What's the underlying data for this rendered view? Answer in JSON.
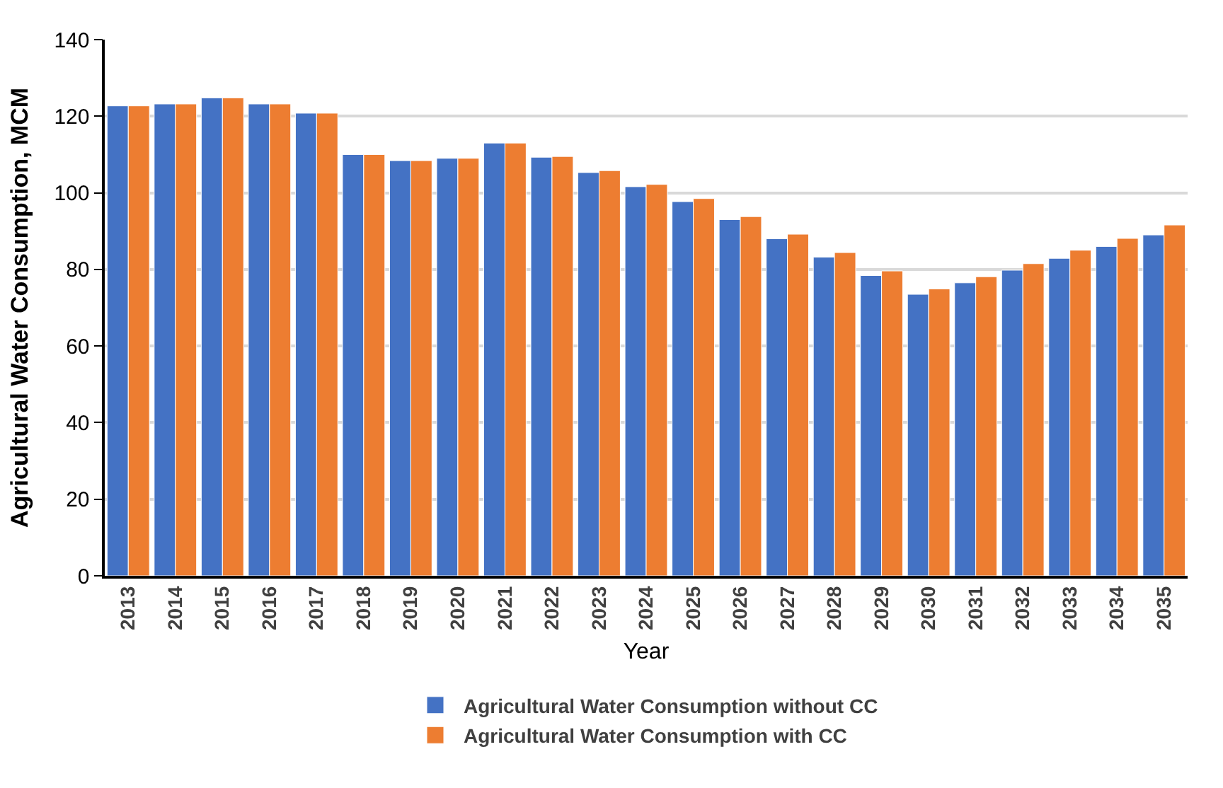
{
  "chart_data": {
    "type": "bar",
    "xlabel": "Year",
    "ylabel": "Agricultural Water Consumption, MCM",
    "categories": [
      "2013",
      "2014",
      "2015",
      "2016",
      "2017",
      "2018",
      "2019",
      "2020",
      "2021",
      "2022",
      "2023",
      "2024",
      "2025",
      "2026",
      "2027",
      "2028",
      "2029",
      "2030",
      "2031",
      "2032",
      "2033",
      "2034",
      "2035"
    ],
    "series": [
      {
        "name": "Agricultural Water Consumption without CC",
        "color": "#4472c4",
        "values": [
          122.7,
          123.2,
          124.8,
          123.2,
          120.8,
          110,
          108.4,
          109,
          113,
          109.3,
          105.3,
          101.6,
          97.7,
          93,
          88,
          83.2,
          78.4,
          73.5,
          76.5,
          79.8,
          82.9,
          86,
          89
        ]
      },
      {
        "name": "Agricultural Water Consumption with CC",
        "color": "#ed7d31",
        "values": [
          122.7,
          123.2,
          124.8,
          123.2,
          120.8,
          110,
          108.4,
          109,
          113,
          109.5,
          105.8,
          102.2,
          98.5,
          93.8,
          89.2,
          84.4,
          79.6,
          74.9,
          78.1,
          81.5,
          85,
          88.1,
          91.6
        ]
      }
    ],
    "ylim": [
      0,
      140
    ],
    "yticks": [
      0,
      20,
      40,
      60,
      80,
      100,
      120,
      140
    ],
    "grid": "y",
    "legend": "bottom"
  }
}
